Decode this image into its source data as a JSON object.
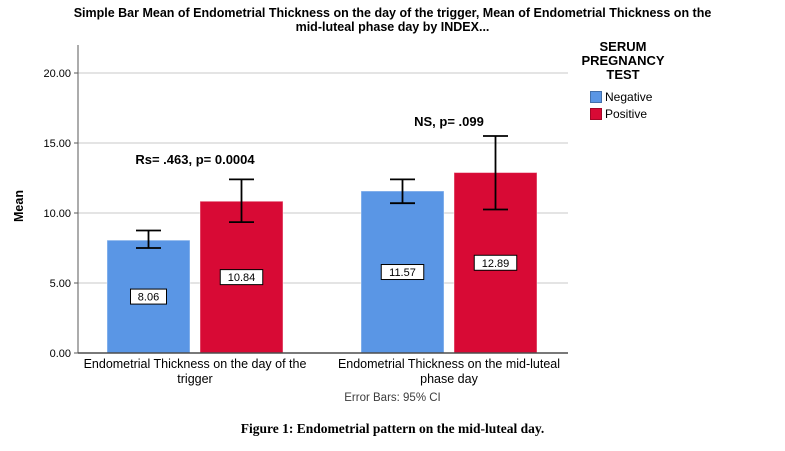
{
  "figure": {
    "caption": "Figure 1: Endometrial pattern on the mid-luteal day."
  },
  "chart_data": {
    "type": "bar",
    "title": "Simple Bar Mean of Endometrial Thickness on the day of the trigger, Mean of Endometrial Thickness on the mid-luteal phase day by INDEX...",
    "title_lines": [
      "Simple Bar Mean of Endometrial Thickness on the day of the trigger, Mean of Endometrial Thickness on the",
      "mid-luteal phase day by INDEX..."
    ],
    "ylabel": "Mean",
    "ylim": [
      0,
      22
    ],
    "grid": true,
    "legend_position": "top-right",
    "legend_title": "SERUM PREGNANCY TEST",
    "yticks": [
      {
        "value": 0,
        "label": "0.00"
      },
      {
        "value": 5,
        "label": "5.00"
      },
      {
        "value": 10,
        "label": "10.00"
      },
      {
        "value": 15,
        "label": "15.00"
      },
      {
        "value": 20,
        "label": "20.00"
      }
    ],
    "categories": [
      "Endometrial Thickness on the day of the trigger",
      "Endometrial Thickness on the mid-luteal phase day"
    ],
    "series": [
      {
        "name": "Negative",
        "color": "#5A96E5",
        "values": [
          8.06,
          11.57
        ],
        "labels": [
          "8.06",
          "11.57"
        ],
        "err_low": [
          7.5,
          10.7
        ],
        "err_high": [
          8.75,
          12.4
        ]
      },
      {
        "name": "Positive",
        "color": "#D80A35",
        "values": [
          10.84,
          12.89
        ],
        "labels": [
          "10.84",
          "12.89"
        ],
        "err_low": [
          9.35,
          10.25
        ],
        "err_high": [
          12.4,
          15.5
        ]
      }
    ],
    "annotations": [
      {
        "text": "Rs= .463, p= 0.0004",
        "group": 0
      },
      {
        "text": "NS, p= .099",
        "group": 1
      }
    ],
    "error_bars_note": "Error Bars: 95% CI"
  }
}
